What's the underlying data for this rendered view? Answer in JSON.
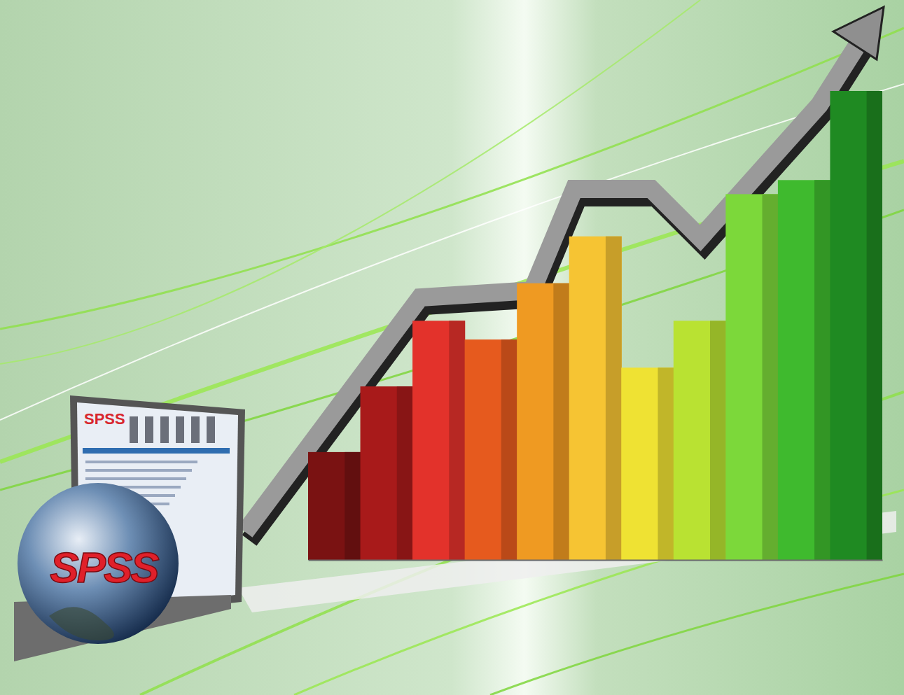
{
  "chart_data": {
    "type": "bar",
    "categories": [
      null,
      null,
      null,
      null,
      null,
      null,
      null,
      null,
      null,
      null,
      null
    ],
    "values": [
      23,
      37,
      51,
      47,
      59,
      69,
      41,
      51,
      78,
      81,
      100
    ],
    "colors": [
      "#7a1212",
      "#a81a1a",
      "#e3322b",
      "#e65a1e",
      "#ef9a22",
      "#f6c433",
      "#efe233",
      "#b9e232",
      "#7cd83a",
      "#3fba2e",
      "#1f8a22"
    ],
    "tick_labels": false,
    "annotations": [
      "SPSS",
      "SPSS"
    ]
  }
}
